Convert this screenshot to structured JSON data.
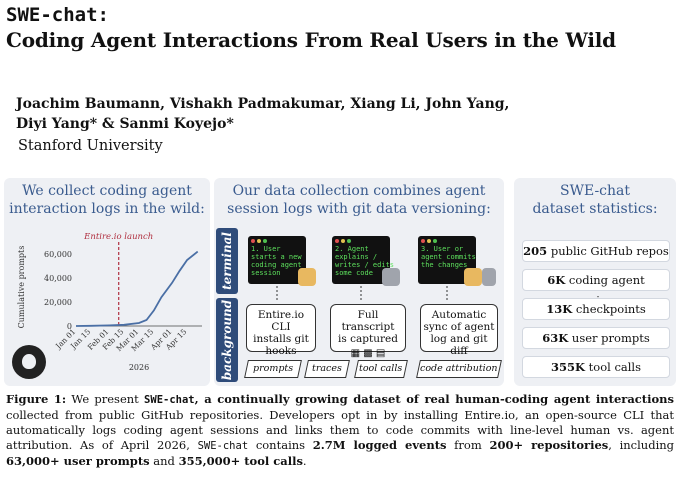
{
  "title": {
    "code_name": "SWE-chat:",
    "subtitle": "Coding Agent Interactions From Real Users in the Wild"
  },
  "authors": {
    "line1": "Joachim Baumann, Vishakh Padmakumar, Xiang Li, John Yang,",
    "line2": "Diyi Yang* & Sanmi Koyejo*"
  },
  "affiliation": "Stanford University",
  "panels": {
    "left": {
      "heading_line1": "We collect coding agent",
      "heading_line2": "interaction logs in the wild:"
    },
    "middle": {
      "heading_line1": "Our data collection combines agent",
      "heading_line2": "session logs with git data versioning:",
      "tab_terminal": "terminal",
      "tab_background": "background",
      "terminals": [
        {
          "text": "1. User\nstarts a new\ncoding agent\nsession"
        },
        {
          "text": "2. Agent\nexplains /\nwrites / edits\nsome code"
        },
        {
          "text": "3. User or\nagent commits\nthe changes"
        }
      ],
      "background_boxes": [
        {
          "line1": "Entire.io CLI",
          "line2": "installs git",
          "line3": "hooks"
        },
        {
          "line1": "Full transcript",
          "line2": "is captured",
          "line3": ""
        },
        {
          "line1": "Automatic",
          "line2": "sync of agent",
          "line3": "log and git diff"
        }
      ],
      "tags": [
        "prompts",
        "traces",
        "tool calls",
        "code attribution"
      ]
    },
    "right": {
      "heading_line1": "SWE-chat",
      "heading_line2": "dataset statistics:",
      "stats": [
        {
          "value": "205",
          "label": "public GitHub repos"
        },
        {
          "value": "6K",
          "label": "coding agent sessions"
        },
        {
          "value": "13K",
          "label": "checkpoints"
        },
        {
          "value": "63K",
          "label": "user prompts"
        },
        {
          "value": "355K",
          "label": "tool calls"
        }
      ]
    }
  },
  "chart_data": {
    "type": "line",
    "title": "",
    "xlabel": "2026",
    "ylabel": "Cumulative prompts",
    "annotation": "Entire.io launch",
    "x_tick_labels": [
      "Jan 01",
      "Jan 15",
      "Feb 01",
      "Feb 15",
      "Mar 01",
      "Mar 15",
      "Apr 01",
      "Apr 15"
    ],
    "y_tick_labels": [
      "0",
      "20,000",
      "40,000",
      "60,000"
    ],
    "ylim": [
      0,
      65000
    ],
    "launch_x": "Feb 10",
    "series": [
      {
        "x": [
          "Jan 01",
          "Jan 15",
          "Feb 01",
          "Feb 15",
          "Mar 01",
          "Mar 08",
          "Mar 15",
          "Mar 22",
          "Apr 01",
          "Apr 08",
          "Apr 15",
          "Apr 25"
        ],
        "values": [
          0,
          200,
          500,
          1000,
          2500,
          5000,
          13000,
          24000,
          36000,
          46000,
          55000,
          62000
        ]
      }
    ],
    "line_color": "#4a6fa5",
    "launch_color": "#b03040",
    "grid": false
  },
  "caption": {
    "prefix": "Figure 1:",
    "p1": " We present ",
    "mono1": "SWE-chat",
    "p2": ", a continually growing dataset of real human-coding agent interactions",
    "p3": " collected from public GitHub repositories. Developers opt in by installing Entire.io, an open-source CLI that automatically logs coding agent sessions and links them to code commits with line-level human vs. agent attribution. As of April 2026, ",
    "mono2": "SWE-chat",
    "p4": " contains ",
    "b1": "2.7M logged events",
    "p5": " from ",
    "b2": "200+ repositories",
    "p6": ", including ",
    "b3": "63,000+ user prompts",
    "p7": " and ",
    "b4": "355,000+ tool calls",
    "p8": "."
  }
}
